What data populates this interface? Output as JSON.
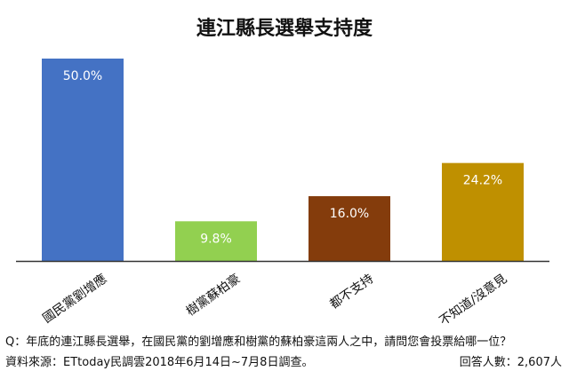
{
  "chart_data": {
    "type": "bar",
    "title": "連江縣長選舉支持度",
    "categories": [
      "國民黨劉增應",
      "樹黨蘇柏豪",
      "都不支持",
      "不知道/沒意見"
    ],
    "values": [
      50.0,
      9.8,
      16.0,
      24.2
    ],
    "value_labels": [
      "50.0%",
      "9.8%",
      "16.0%",
      "24.2%"
    ],
    "colors": [
      "#4472c4",
      "#92d050",
      "#843c0c",
      "#bf9000"
    ],
    "ylim": [
      0,
      50
    ],
    "grid": false,
    "legend": "none",
    "xlabel": "",
    "ylabel": ""
  },
  "footer": {
    "question": "Q：年底的連江縣長選舉，在國民黨的劉增應和樹黨的蘇柏豪這兩人之中，請問您會投票給哪一位？",
    "source": "資料來源：ETtoday民調雲2018年6月14日~7月8日調查。",
    "respondents": "回答人數：2,607人"
  }
}
